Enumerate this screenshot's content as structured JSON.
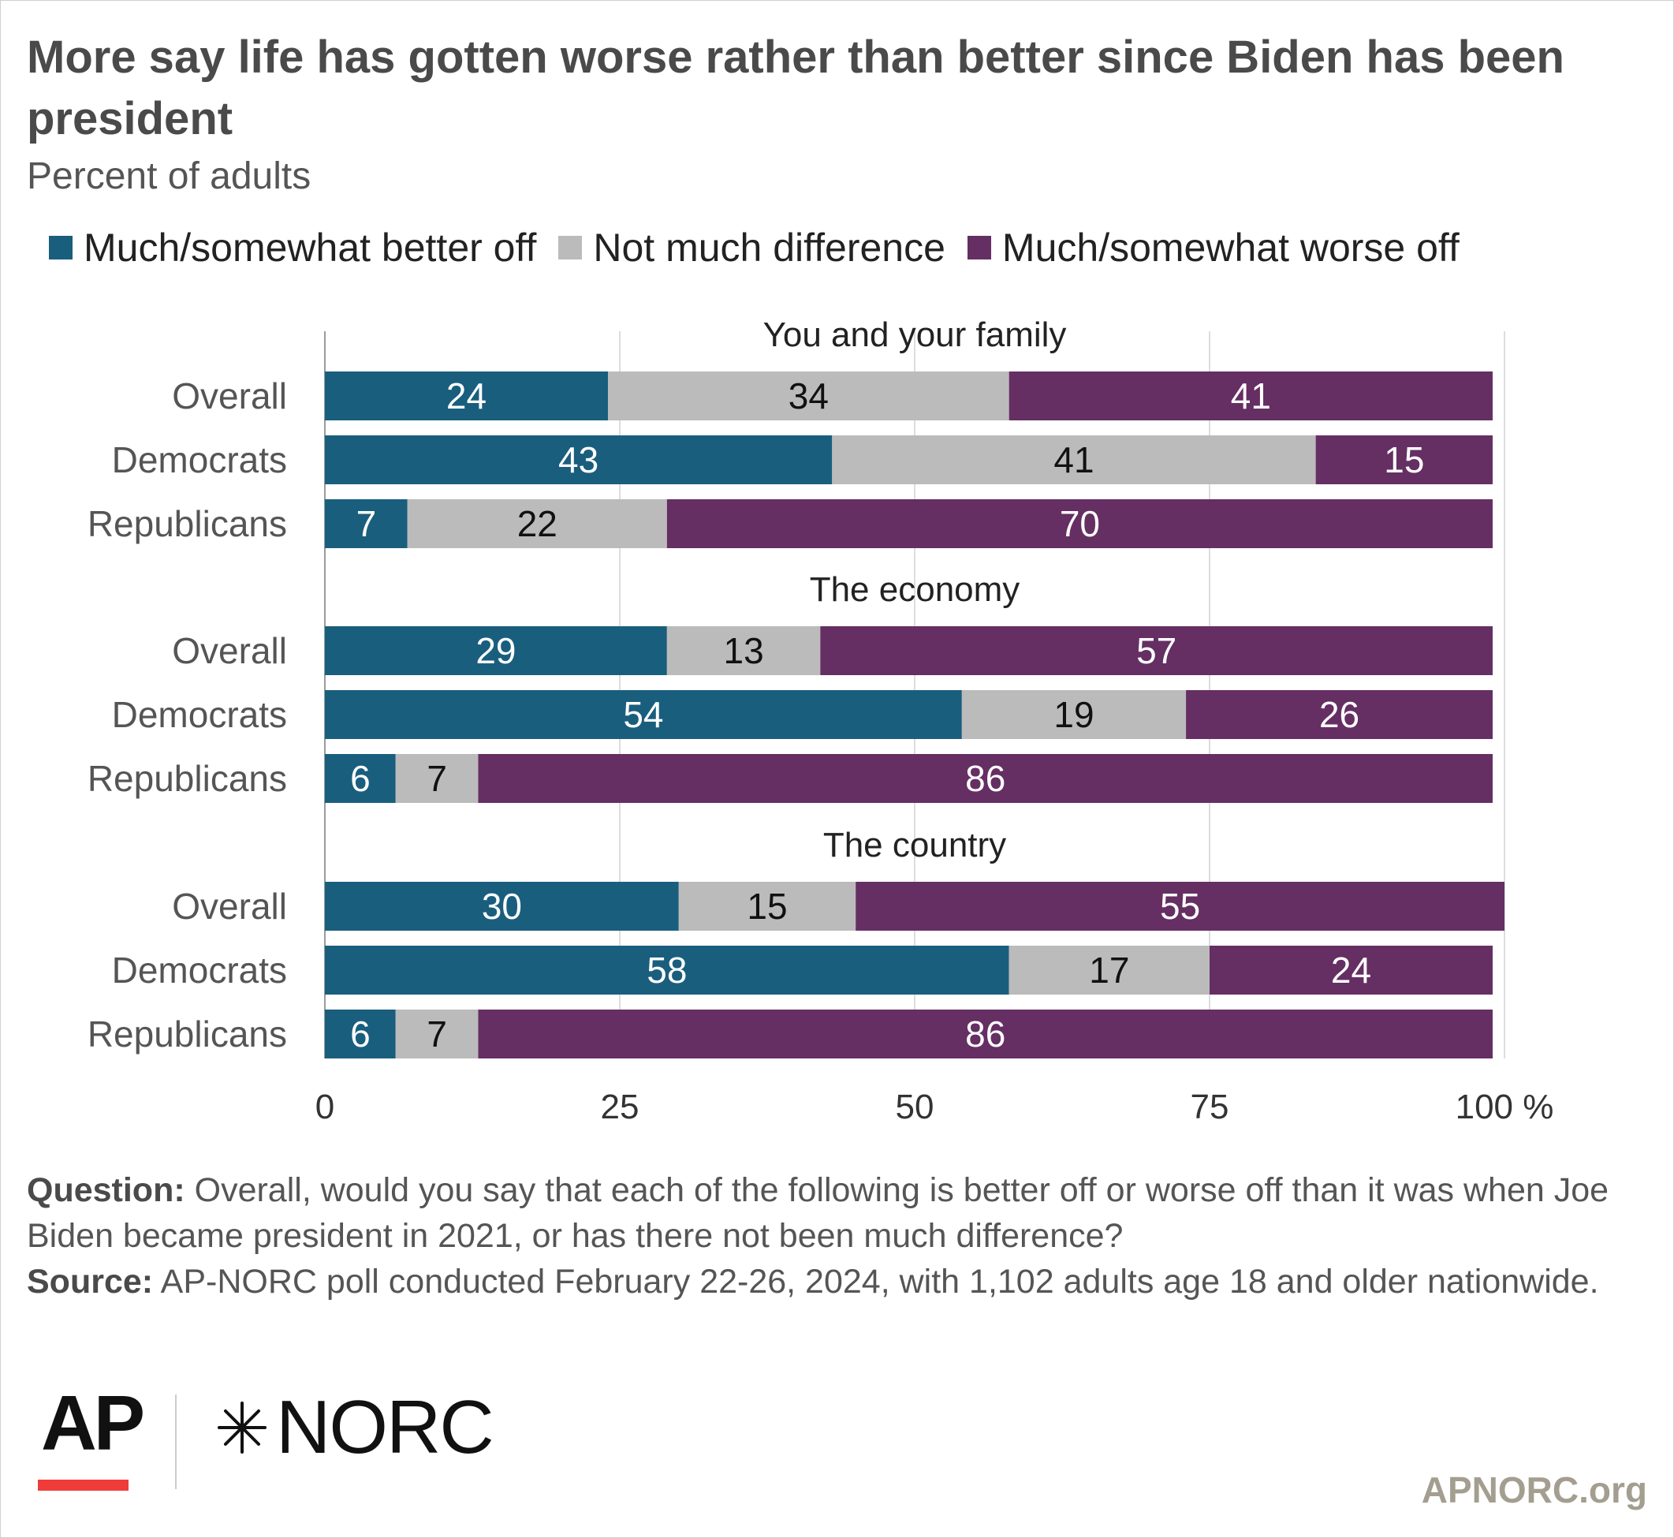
{
  "title": "More say life has gotten worse rather than better since Biden has been president",
  "subtitle": "Percent of adults",
  "legend": [
    {
      "label": "Much/somewhat better off",
      "color": "#1a5e7e"
    },
    {
      "label": "Not much difference",
      "color": "#bbbbbb"
    },
    {
      "label": "Much/somewhat worse off",
      "color": "#652f63"
    }
  ],
  "notes": {
    "question_label": "Question:",
    "question_text": " Overall, would you say that each of the following is better off or worse off than it was when Joe Biden became president in 2021, or has there not been much difference?",
    "source_label": "Source:",
    "source_text": " AP-NORC poll conducted February 22-26, 2024, with 1,102 adults age 18 and older nationwide."
  },
  "logos": {
    "ap": "AP",
    "norc": "NORC"
  },
  "site": "APNORC.org",
  "chart_data": {
    "type": "bar",
    "orientation": "horizontal",
    "stacked": true,
    "xlim": [
      0,
      100
    ],
    "xticks": [
      0,
      25,
      50,
      75,
      100
    ],
    "xtick_labels": [
      "0",
      "25",
      "50",
      "75",
      "100 %"
    ],
    "grid": true,
    "legend_position": "top",
    "series_names": [
      "Much/somewhat better off",
      "Not much difference",
      "Much/somewhat worse off"
    ],
    "series_colors": [
      "#1a5e7e",
      "#bbbbbb",
      "#652f63"
    ],
    "label_colors": [
      "#ffffff",
      "#111111",
      "#ffffff"
    ],
    "groups": [
      {
        "title": "You and your family",
        "rows": [
          {
            "label": "Overall",
            "values": [
              24,
              34,
              41
            ]
          },
          {
            "label": "Democrats",
            "values": [
              43,
              41,
              15
            ]
          },
          {
            "label": "Republicans",
            "values": [
              7,
              22,
              70
            ]
          }
        ]
      },
      {
        "title": "The economy",
        "rows": [
          {
            "label": "Overall",
            "values": [
              29,
              13,
              57
            ]
          },
          {
            "label": "Democrats",
            "values": [
              54,
              19,
              26
            ]
          },
          {
            "label": "Republicans",
            "values": [
              6,
              7,
              86
            ]
          }
        ]
      },
      {
        "title": "The country",
        "rows": [
          {
            "label": "Overall",
            "values": [
              30,
              15,
              55
            ]
          },
          {
            "label": "Democrats",
            "values": [
              58,
              17,
              24
            ]
          },
          {
            "label": "Republicans",
            "values": [
              6,
              7,
              86
            ]
          }
        ]
      }
    ]
  }
}
